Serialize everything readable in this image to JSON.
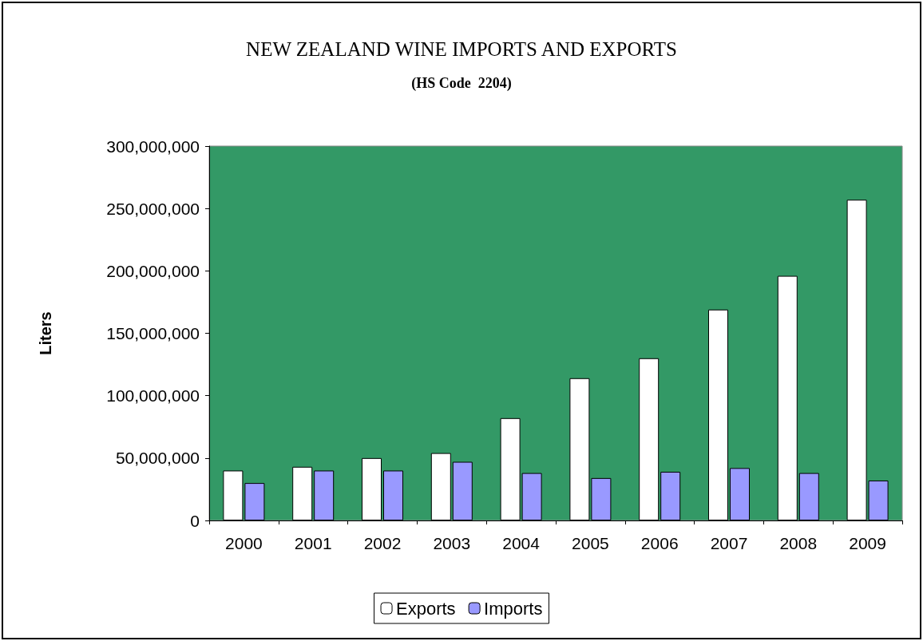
{
  "chart_data": {
    "type": "bar",
    "title": "NEW ZEALAND WINE IMPORTS AND EXPORTS",
    "subtitle": "(HS Code  2204)",
    "ylabel": "Liters",
    "categories": [
      "2000",
      "2001",
      "2002",
      "2003",
      "2004",
      "2005",
      "2006",
      "2007",
      "2008",
      "2009"
    ],
    "series": [
      {
        "name": "Exports",
        "color": "#ffffff",
        "values": [
          40000000,
          43000000,
          50000000,
          54000000,
          82000000,
          114000000,
          130000000,
          169000000,
          196000000,
          257000000
        ]
      },
      {
        "name": "Imports",
        "color": "#9999ff",
        "values": [
          30000000,
          40000000,
          40000000,
          47000000,
          38000000,
          34000000,
          39000000,
          42000000,
          38000000,
          32000000
        ]
      }
    ],
    "ylim": [
      0,
      300000000
    ],
    "yticks": [
      0,
      {
        "value": 50000000,
        "label": "50,000,000"
      },
      {
        "value": 100000000,
        "label": "100,000,000"
      },
      {
        "value": 150000000,
        "label": "150,000,000"
      },
      {
        "value": 200000000,
        "label": "200,000,000"
      },
      {
        "value": 250000000,
        "label": "250,000,000"
      },
      {
        "value": 300000000,
        "label": "300,000,000"
      }
    ],
    "grid": false,
    "legend": "bottom"
  }
}
